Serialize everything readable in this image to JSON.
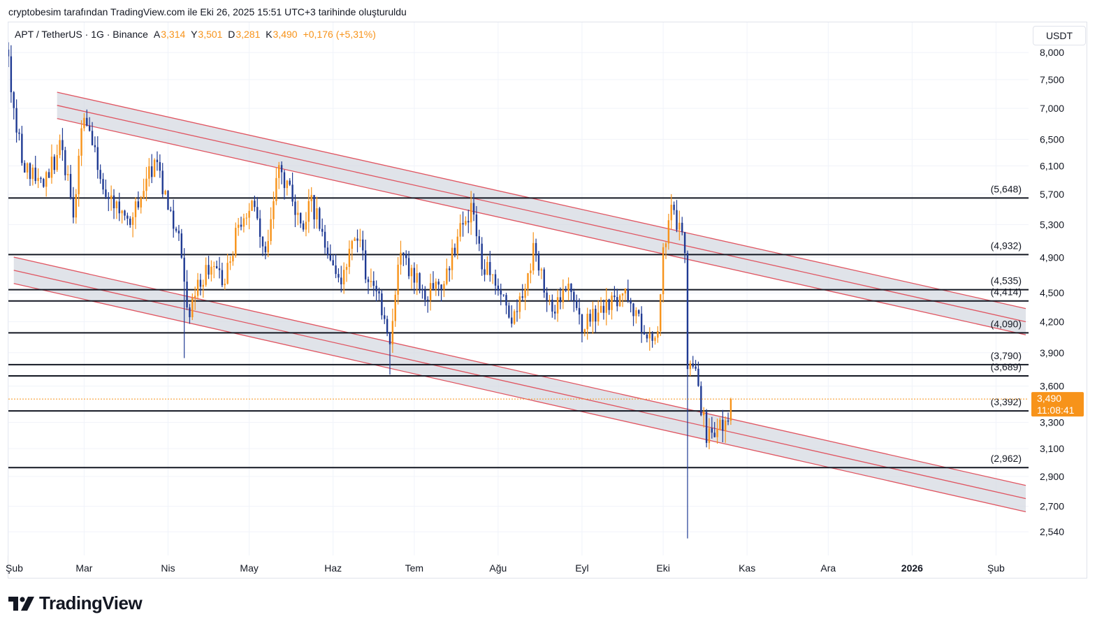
{
  "caption": "cryptobesim tarafından TradingView.com ile Eki 26, 2025 15:51 UTC+3 tarihinde oluşturuldu",
  "legend": {
    "symbol": "APT / TetherUS · 1G · Binance",
    "open_label": "A",
    "open": "3,314",
    "high_label": "Y",
    "high": "3,501",
    "low_label": "D",
    "low": "3,281",
    "close_label": "K",
    "close": "3,490",
    "change": "+0,176 (+5,31%)"
  },
  "currency": "USDT",
  "brand": "TradingView",
  "colors": {
    "up": "#f7931a",
    "down": "#1f3a93",
    "channel": "#e05561",
    "channel_fill": "#d5d9e2",
    "level": "#131722",
    "last_price": "#f7931a"
  },
  "chart_data": {
    "type": "candlestick",
    "title": "APT / TetherUS · 1G · Binance",
    "y_scale": "log",
    "ylim": [
      2.4,
      8.6
    ],
    "xlim": [
      "2025-02-01",
      "2026-02-12"
    ],
    "x_ticks": [
      {
        "label": "Şub",
        "date": "2025-02-01"
      },
      {
        "label": "Mar",
        "date": "2025-03-01"
      },
      {
        "label": "Nis",
        "date": "2025-04-01"
      },
      {
        "label": "May",
        "date": "2025-05-01"
      },
      {
        "label": "Haz",
        "date": "2025-06-01"
      },
      {
        "label": "Tem",
        "date": "2025-07-01"
      },
      {
        "label": "Ağu",
        "date": "2025-08-01"
      },
      {
        "label": "Eyl",
        "date": "2025-09-01"
      },
      {
        "label": "Eki",
        "date": "2025-10-01"
      },
      {
        "label": "Kas",
        "date": "2025-11-01"
      },
      {
        "label": "Ara",
        "date": "2025-12-01"
      },
      {
        "label": "2026",
        "date": "2026-01-01"
      },
      {
        "label": "Şub",
        "date": "2026-02-01"
      }
    ],
    "y_ticks": [
      {
        "value": 8.0,
        "label": "8,000"
      },
      {
        "value": 7.5,
        "label": "7,500"
      },
      {
        "value": 7.0,
        "label": "7,000"
      },
      {
        "value": 6.5,
        "label": "6,500"
      },
      {
        "value": 6.1,
        "label": "6,100"
      },
      {
        "value": 5.7,
        "label": "5,700"
      },
      {
        "value": 5.3,
        "label": "5,300"
      },
      {
        "value": 4.9,
        "label": "4,900"
      },
      {
        "value": 4.5,
        "label": "4,500"
      },
      {
        "value": 4.2,
        "label": "4,200"
      },
      {
        "value": 3.9,
        "label": "3,900"
      },
      {
        "value": 3.6,
        "label": "3,600"
      },
      {
        "value": 3.3,
        "label": "3,300"
      },
      {
        "value": 3.1,
        "label": "3,100"
      },
      {
        "value": 2.9,
        "label": "2,900"
      },
      {
        "value": 2.7,
        "label": "2,700"
      },
      {
        "value": 2.54,
        "label": "2,540"
      }
    ],
    "levels": [
      {
        "value": 5.648,
        "label": "(5,648)"
      },
      {
        "value": 4.932,
        "label": "(4,932)"
      },
      {
        "value": 4.535,
        "label": "(4,535)"
      },
      {
        "value": 4.414,
        "label": "(4,414)"
      },
      {
        "value": 4.09,
        "label": "(4,090)"
      },
      {
        "value": 3.79,
        "label": "(3,790)"
      },
      {
        "value": 3.689,
        "label": "(3,689)"
      },
      {
        "value": 3.392,
        "label": "(3,392)"
      },
      {
        "value": 2.962,
        "label": "(2,962)"
      }
    ],
    "channels": [
      {
        "name": "upper",
        "start_date": "2025-02-19",
        "start": 7.05,
        "end_date": "2026-02-12",
        "end": 4.2,
        "band_width_pct": 3.2
      },
      {
        "name": "lower",
        "start_date": "2025-02-03",
        "start": 4.75,
        "end_date": "2026-02-12",
        "end": 2.75,
        "band_width_pct": 3.2
      }
    ],
    "last_price": {
      "value": 3.49,
      "label": "3,490",
      "countdown": "11:08:41"
    },
    "anchors": [
      [
        "2025-02-01",
        7.9
      ],
      [
        "2025-02-04",
        6.6
      ],
      [
        "2025-02-08",
        6.0
      ],
      [
        "2025-02-14",
        5.8
      ],
      [
        "2025-02-20",
        6.4
      ],
      [
        "2025-02-25",
        5.5
      ],
      [
        "2025-03-01",
        6.9
      ],
      [
        "2025-03-06",
        6.1
      ],
      [
        "2025-03-12",
        5.5
      ],
      [
        "2025-03-18",
        5.3
      ],
      [
        "2025-03-24",
        5.9
      ],
      [
        "2025-03-28",
        6.1
      ],
      [
        "2025-04-01",
        5.5
      ],
      [
        "2025-04-05",
        5.1
      ],
      [
        "2025-04-08",
        4.25
      ],
      [
        "2025-04-12",
        4.6
      ],
      [
        "2025-04-18",
        4.8
      ],
      [
        "2025-04-22",
        4.6
      ],
      [
        "2025-04-27",
        5.3
      ],
      [
        "2025-05-02",
        5.5
      ],
      [
        "2025-05-07",
        5.0
      ],
      [
        "2025-05-12",
        6.1
      ],
      [
        "2025-05-16",
        5.7
      ],
      [
        "2025-05-20",
        5.2
      ],
      [
        "2025-05-24",
        5.6
      ],
      [
        "2025-05-29",
        5.1
      ],
      [
        "2025-06-04",
        4.6
      ],
      [
        "2025-06-10",
        5.2
      ],
      [
        "2025-06-14",
        4.6
      ],
      [
        "2025-06-18",
        4.45
      ],
      [
        "2025-06-22",
        3.95
      ],
      [
        "2025-06-26",
        5.0
      ],
      [
        "2025-06-30",
        4.7
      ],
      [
        "2025-07-06",
        4.5
      ],
      [
        "2025-07-12",
        4.6
      ],
      [
        "2025-07-18",
        5.2
      ],
      [
        "2025-07-22",
        5.5
      ],
      [
        "2025-07-26",
        4.8
      ],
      [
        "2025-08-01",
        4.6
      ],
      [
        "2025-08-05",
        4.2
      ],
      [
        "2025-08-10",
        4.4
      ],
      [
        "2025-08-14",
        5.0
      ],
      [
        "2025-08-18",
        4.6
      ],
      [
        "2025-08-22",
        4.3
      ],
      [
        "2025-08-26",
        4.6
      ],
      [
        "2025-09-01",
        4.2
      ],
      [
        "2025-09-06",
        4.25
      ],
      [
        "2025-09-12",
        4.4
      ],
      [
        "2025-09-17",
        4.55
      ],
      [
        "2025-09-22",
        4.2
      ],
      [
        "2025-09-25",
        3.95
      ],
      [
        "2025-09-29",
        4.2
      ],
      [
        "2025-10-01",
        4.9
      ],
      [
        "2025-10-04",
        5.5
      ],
      [
        "2025-10-07",
        5.3
      ],
      [
        "2025-10-09",
        4.9
      ],
      [
        "2025-10-10",
        3.7
      ],
      [
        "2025-10-12",
        3.85
      ],
      [
        "2025-10-14",
        3.55
      ],
      [
        "2025-10-17",
        3.22
      ],
      [
        "2025-10-20",
        3.25
      ],
      [
        "2025-10-23",
        3.25
      ],
      [
        "2025-10-25",
        3.31
      ],
      [
        "2025-10-26",
        3.49
      ]
    ]
  }
}
